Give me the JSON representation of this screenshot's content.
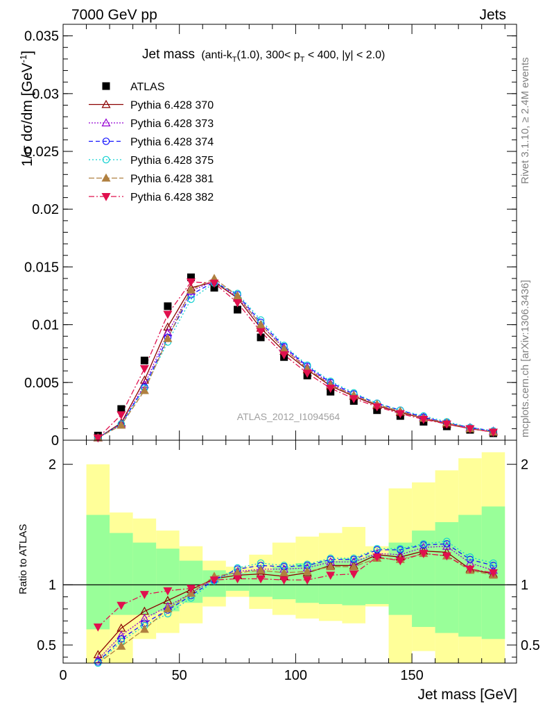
{
  "header": {
    "left": "7000 GeV pp",
    "right": "Jets"
  },
  "side_labels": {
    "rivet": "Rivet 3.1.10, ≥ 2.4M events",
    "mcplots": "mcplots.cern.ch [arXiv:1306.3436]"
  },
  "analysis_id": "ATLAS_2012_I1094564",
  "colors": {
    "data": "#000000",
    "band_inner": "#99ff99",
    "band_outer": "#ffff99",
    "s370": "#8b0000",
    "s373": "#9400d3",
    "s374": "#1010ff",
    "s375": "#10d0d0",
    "s381": "#b08040",
    "s382": "#e0104e"
  },
  "chart_data": [
    {
      "type": "line",
      "title": "Jet mass (anti-kT(1.0), 300< pT < 400, |y| < 2.0)",
      "title_main": "Jet mass",
      "title_detail_parts": [
        "(anti-k",
        "T",
        "(1.0), 300< p",
        "T",
        " < 400, |y| < 2.0)"
      ],
      "ylabel": "1/σ dσ/dm [GeV⁻¹]",
      "ylabel_text": "1/σ dσ/dm [GeV",
      "ylabel_sup": "-1",
      "ylabel_end": "]",
      "xlim": [
        0,
        195
      ],
      "ylim": [
        0,
        0.036
      ],
      "yticks": [
        0,
        0.005,
        0.01,
        0.015,
        0.02,
        0.025,
        0.03,
        0.035
      ],
      "ytick_labels": [
        "0",
        "0.005",
        "0.01",
        "0.015",
        "0.02",
        "0.025",
        "0.03",
        "0.035"
      ],
      "legend_position": "top-left",
      "x": [
        15,
        25,
        35,
        45,
        55,
        65,
        75,
        85,
        95,
        105,
        115,
        125,
        135,
        145,
        155,
        165,
        175,
        185
      ],
      "series": [
        {
          "name": "ATLAS",
          "key": "data",
          "marker": "square",
          "dash": "",
          "values": [
            0.0004,
            0.0027,
            0.0069,
            0.0116,
            0.0141,
            0.0132,
            0.0113,
            0.0089,
            0.0072,
            0.0056,
            0.0042,
            0.0034,
            0.0026,
            0.0021,
            0.0016,
            0.0012,
            0.0009,
            0.0006
          ]
        },
        {
          "name": "Pythia 6.428 370",
          "key": "s370",
          "marker": "triangle-open",
          "dash": "",
          "values": [
            0.0002,
            0.0015,
            0.0052,
            0.0098,
            0.0132,
            0.0137,
            0.0123,
            0.0097,
            0.0077,
            0.0061,
            0.0047,
            0.0038,
            0.003,
            0.0024,
            0.0019,
            0.0014,
            0.001,
            0.0007
          ]
        },
        {
          "name": "Pythia 6.428 373",
          "key": "s373",
          "marker": "triangle-open",
          "dash": "2,2",
          "values": [
            0.0002,
            0.0014,
            0.0048,
            0.0093,
            0.0129,
            0.0138,
            0.0124,
            0.01,
            0.008,
            0.0063,
            0.0049,
            0.0039,
            0.0031,
            0.0025,
            0.002,
            0.0015,
            0.0011,
            0.0008
          ]
        },
        {
          "name": "Pythia 6.428 374",
          "key": "s374",
          "marker": "circle-open",
          "dash": "6,4",
          "values": [
            0.0002,
            0.0014,
            0.0046,
            0.0089,
            0.0126,
            0.0137,
            0.0126,
            0.0102,
            0.0081,
            0.0064,
            0.005,
            0.004,
            0.0032,
            0.0026,
            0.002,
            0.0015,
            0.0011,
            0.0008
          ]
        },
        {
          "name": "Pythia 6.428 375",
          "key": "s375",
          "marker": "circle-open",
          "dash": "2,3",
          "values": [
            0.0002,
            0.0014,
            0.0045,
            0.0085,
            0.0122,
            0.0136,
            0.0127,
            0.0104,
            0.0082,
            0.0065,
            0.0051,
            0.0041,
            0.0032,
            0.0026,
            0.0021,
            0.0016,
            0.0011,
            0.0008
          ]
        },
        {
          "name": "Pythia 6.428 381",
          "key": "s381",
          "marker": "triangle-filled",
          "dash": "8,3",
          "values": [
            0.0002,
            0.0013,
            0.0043,
            0.0088,
            0.013,
            0.014,
            0.0125,
            0.01,
            0.0079,
            0.0062,
            0.0048,
            0.0039,
            0.0031,
            0.0025,
            0.0019,
            0.0015,
            0.001,
            0.0007
          ]
        },
        {
          "name": "Pythia 6.428 382",
          "key": "s382",
          "marker": "triangledown-filled",
          "dash": "8,3,2,3",
          "values": [
            0.0002,
            0.0022,
            0.0062,
            0.0109,
            0.0137,
            0.0136,
            0.0119,
            0.0094,
            0.0074,
            0.0058,
            0.0045,
            0.0036,
            0.0029,
            0.0023,
            0.0018,
            0.0014,
            0.001,
            0.0007
          ]
        }
      ]
    },
    {
      "type": "line",
      "ylabel": "Ratio to ATLAS",
      "xlabel": "Jet mass [GeV]",
      "xlim": [
        0,
        195
      ],
      "ylim": [
        0.35,
        2.2
      ],
      "yticks_labeled": [
        0.5,
        1,
        2
      ],
      "ytick_labels": [
        "0.5",
        "1",
        "2"
      ],
      "xticks": [
        0,
        50,
        100,
        150
      ],
      "xtick_labels": [
        "0",
        "50",
        "100",
        "150"
      ],
      "bins": [
        [
          10,
          20
        ],
        [
          20,
          30
        ],
        [
          30,
          40
        ],
        [
          40,
          50
        ],
        [
          50,
          60
        ],
        [
          60,
          70
        ],
        [
          70,
          80
        ],
        [
          80,
          90
        ],
        [
          90,
          100
        ],
        [
          100,
          110
        ],
        [
          110,
          120
        ],
        [
          120,
          130
        ],
        [
          130,
          140
        ],
        [
          140,
          150
        ],
        [
          150,
          160
        ],
        [
          160,
          170
        ],
        [
          170,
          180
        ],
        [
          180,
          190
        ]
      ],
      "band_outer": [
        [
          0.3,
          2.0
        ],
        [
          0.3,
          1.6
        ],
        [
          0.55,
          1.55
        ],
        [
          0.6,
          1.45
        ],
        [
          0.68,
          1.32
        ],
        [
          0.82,
          1.2
        ],
        [
          0.9,
          1.15
        ],
        [
          0.8,
          1.25
        ],
        [
          0.75,
          1.35
        ],
        [
          0.72,
          1.4
        ],
        [
          0.7,
          1.43
        ],
        [
          0.68,
          1.48
        ],
        [
          0.82,
          1.32
        ],
        [
          0.3,
          1.8
        ],
        [
          0.45,
          1.85
        ],
        [
          0.3,
          1.95
        ],
        [
          0.3,
          2.05
        ],
        [
          0.3,
          2.1
        ]
      ],
      "band_inner": [
        [
          0.63,
          1.58
        ],
        [
          0.75,
          1.43
        ],
        [
          0.75,
          1.35
        ],
        [
          0.78,
          1.3
        ],
        [
          0.85,
          1.2
        ],
        [
          0.9,
          1.12
        ],
        [
          0.95,
          1.1
        ],
        [
          0.9,
          1.12
        ],
        [
          0.88,
          1.15
        ],
        [
          0.85,
          1.18
        ],
        [
          0.84,
          1.2
        ],
        [
          0.83,
          1.22
        ],
        [
          0.84,
          1.25
        ],
        [
          0.75,
          1.35
        ],
        [
          0.65,
          1.45
        ],
        [
          0.6,
          1.52
        ],
        [
          0.57,
          1.58
        ],
        [
          0.55,
          1.65
        ]
      ],
      "reference_line": 1,
      "x": [
        15,
        25,
        35,
        45,
        55,
        65,
        75,
        85,
        95,
        105,
        115,
        125,
        135,
        145,
        155,
        165,
        175,
        185
      ],
      "series": [
        {
          "key": "s370",
          "marker": "triangle-open",
          "dash": "",
          "values": [
            0.42,
            0.64,
            0.78,
            0.87,
            0.96,
            1.05,
            1.08,
            1.09,
            1.07,
            1.1,
            1.16,
            1.16,
            1.25,
            1.23,
            1.28,
            1.27,
            1.13,
            1.09
          ]
        },
        {
          "key": "s373",
          "marker": "triangle-open",
          "dash": "2,2",
          "values": [
            0.38,
            0.58,
            0.72,
            0.82,
            0.93,
            1.05,
            1.11,
            1.13,
            1.13,
            1.14,
            1.19,
            1.19,
            1.26,
            1.25,
            1.31,
            1.32,
            1.18,
            1.12
          ]
        },
        {
          "key": "s374",
          "marker": "circle-open",
          "dash": "6,4",
          "values": [
            0.36,
            0.55,
            0.68,
            0.79,
            0.91,
            1.04,
            1.13,
            1.16,
            1.15,
            1.16,
            1.21,
            1.21,
            1.29,
            1.29,
            1.33,
            1.34,
            1.21,
            1.16
          ]
        },
        {
          "key": "s375",
          "marker": "circle-open",
          "dash": "2,3",
          "values": [
            0.35,
            0.53,
            0.66,
            0.76,
            0.89,
            1.03,
            1.14,
            1.18,
            1.16,
            1.17,
            1.22,
            1.22,
            1.3,
            1.3,
            1.34,
            1.36,
            1.23,
            1.18
          ]
        },
        {
          "key": "s381",
          "marker": "triangle-filled",
          "dash": "8,3",
          "values": [
            0.3,
            0.49,
            0.63,
            0.8,
            0.93,
            1.07,
            1.1,
            1.12,
            1.1,
            1.11,
            1.15,
            1.15,
            1.22,
            1.21,
            1.26,
            1.24,
            1.12,
            1.08
          ]
        },
        {
          "key": "s382",
          "marker": "triangledown-filled",
          "dash": "8,3,2,3",
          "values": [
            0.65,
            0.83,
            0.92,
            0.95,
            0.97,
            1.04,
            1.05,
            1.05,
            1.04,
            1.04,
            1.08,
            1.09,
            1.23,
            1.2,
            1.26,
            1.24,
            1.13,
            1.1
          ]
        }
      ]
    }
  ]
}
